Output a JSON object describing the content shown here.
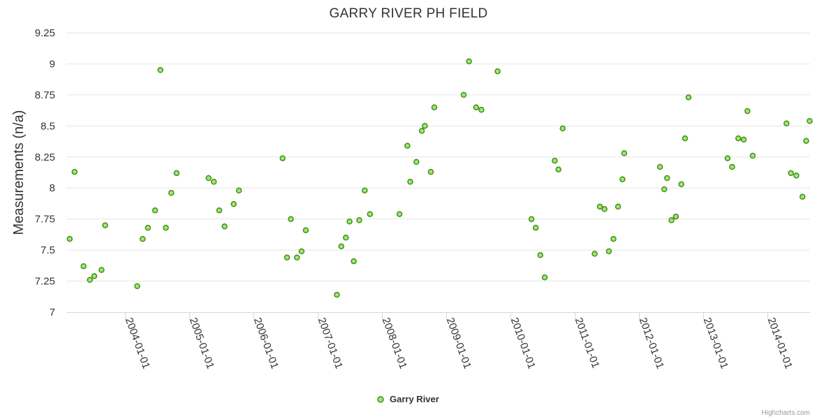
{
  "chart_data": {
    "type": "scatter",
    "title": "GARRY RIVER PH FIELD",
    "xlabel": "",
    "ylabel": "Measurements (n/a)",
    "ylim": [
      7,
      9.25
    ],
    "y_ticks": [
      "7",
      "7.25",
      "7.5",
      "7.75",
      "8",
      "8.25",
      "8.5",
      "8.75",
      "9",
      "9.25"
    ],
    "xlim": [
      "2003-02-01",
      "2014-09-01"
    ],
    "x_ticks": [
      "2004-01-01",
      "2005-01-01",
      "2006-01-01",
      "2007-01-01",
      "2008-01-01",
      "2009-01-01",
      "2010-01-01",
      "2011-01-01",
      "2012-01-01",
      "2013-01-01",
      "2014-01-01"
    ],
    "grid": true,
    "legend": "bottom-center",
    "series": [
      {
        "name": "Garry River",
        "color": "#90ed7d",
        "edge_color": "#4f8a10",
        "points": [
          [
            "2003-02-20",
            7.59
          ],
          [
            "2003-03-20",
            8.13
          ],
          [
            "2003-05-10",
            7.37
          ],
          [
            "2003-06-15",
            7.26
          ],
          [
            "2003-07-10",
            7.29
          ],
          [
            "2003-08-20",
            7.34
          ],
          [
            "2003-09-10",
            7.7
          ],
          [
            "2004-03-10",
            7.21
          ],
          [
            "2004-04-10",
            7.59
          ],
          [
            "2004-05-10",
            7.68
          ],
          [
            "2004-06-20",
            7.82
          ],
          [
            "2004-07-20",
            8.95
          ],
          [
            "2004-08-20",
            7.68
          ],
          [
            "2004-09-20",
            7.96
          ],
          [
            "2004-10-20",
            8.12
          ],
          [
            "2005-04-20",
            8.08
          ],
          [
            "2005-05-20",
            8.05
          ],
          [
            "2005-06-20",
            7.82
          ],
          [
            "2005-07-20",
            7.69
          ],
          [
            "2005-09-10",
            7.87
          ],
          [
            "2005-10-10",
            7.98
          ],
          [
            "2006-06-15",
            8.24
          ],
          [
            "2006-07-10",
            7.44
          ],
          [
            "2006-08-01",
            7.75
          ],
          [
            "2006-09-05",
            7.44
          ],
          [
            "2006-10-01",
            7.49
          ],
          [
            "2006-10-25",
            7.66
          ],
          [
            "2007-04-20",
            7.14
          ],
          [
            "2007-05-15",
            7.53
          ],
          [
            "2007-06-10",
            7.6
          ],
          [
            "2007-07-01",
            7.73
          ],
          [
            "2007-07-25",
            7.41
          ],
          [
            "2007-08-25",
            7.74
          ],
          [
            "2007-09-25",
            7.98
          ],
          [
            "2007-10-25",
            7.79
          ],
          [
            "2008-04-10",
            7.79
          ],
          [
            "2008-05-25",
            8.34
          ],
          [
            "2008-06-10",
            8.05
          ],
          [
            "2008-07-15",
            8.21
          ],
          [
            "2008-08-15",
            8.46
          ],
          [
            "2008-09-01",
            8.5
          ],
          [
            "2008-10-05",
            8.13
          ],
          [
            "2008-10-25",
            8.65
          ],
          [
            "2009-04-10",
            8.75
          ],
          [
            "2009-05-10",
            9.02
          ],
          [
            "2009-06-20",
            8.65
          ],
          [
            "2009-07-20",
            8.63
          ],
          [
            "2009-10-20",
            8.94
          ],
          [
            "2010-05-01",
            7.75
          ],
          [
            "2010-05-25",
            7.68
          ],
          [
            "2010-06-20",
            7.46
          ],
          [
            "2010-07-15",
            7.28
          ],
          [
            "2010-09-10",
            8.22
          ],
          [
            "2010-10-01",
            8.15
          ],
          [
            "2010-10-25",
            8.48
          ],
          [
            "2011-04-25",
            7.47
          ],
          [
            "2011-05-25",
            7.85
          ],
          [
            "2011-06-20",
            7.83
          ],
          [
            "2011-07-15",
            7.49
          ],
          [
            "2011-08-10",
            7.59
          ],
          [
            "2011-09-05",
            7.85
          ],
          [
            "2011-09-30",
            8.07
          ],
          [
            "2011-10-10",
            8.28
          ],
          [
            "2012-05-01",
            8.17
          ],
          [
            "2012-05-25",
            7.99
          ],
          [
            "2012-06-10",
            8.08
          ],
          [
            "2012-07-05",
            7.74
          ],
          [
            "2012-07-30",
            7.77
          ],
          [
            "2012-08-30",
            8.03
          ],
          [
            "2012-09-20",
            8.4
          ],
          [
            "2012-10-10",
            8.73
          ],
          [
            "2013-05-20",
            8.24
          ],
          [
            "2013-06-15",
            8.17
          ],
          [
            "2013-07-20",
            8.4
          ],
          [
            "2013-08-20",
            8.39
          ],
          [
            "2013-09-10",
            8.62
          ],
          [
            "2013-10-10",
            8.26
          ],
          [
            "2014-04-20",
            8.52
          ],
          [
            "2014-05-15",
            8.12
          ],
          [
            "2014-06-15",
            8.1
          ],
          [
            "2014-07-20",
            7.93
          ],
          [
            "2014-08-10",
            8.38
          ],
          [
            "2014-08-30",
            8.54
          ]
        ]
      }
    ],
    "credits": "Highcharts.com"
  }
}
